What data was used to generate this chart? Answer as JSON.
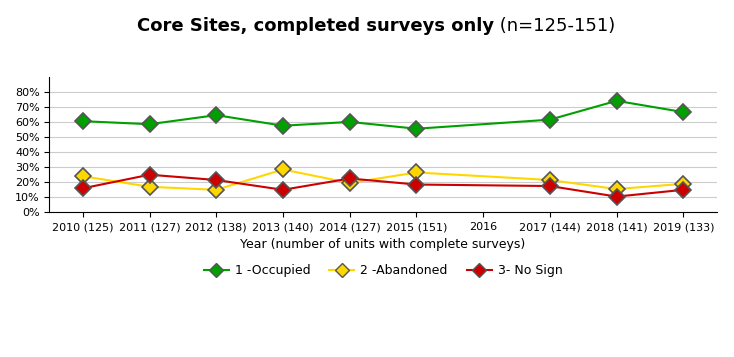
{
  "title_bold": "Core Sites, completed surveys only",
  "title_normal": " (n=125-151)",
  "xlabel": "Year (number of units with complete surveys)",
  "x_labels": [
    "2010 (125)",
    "2011 (127)",
    "2012 (138)",
    "2013 (140)",
    "2014 (127)",
    "2015 (151)",
    "2016",
    "2017 (144)",
    "2018 (141)",
    "2019 (133)"
  ],
  "x_positions": [
    0,
    1,
    2,
    3,
    4,
    5,
    6,
    7,
    8,
    9
  ],
  "occupied": {
    "positions": [
      0,
      1,
      2,
      3,
      4,
      5,
      7,
      8,
      9
    ],
    "values": [
      0.605,
      0.585,
      0.645,
      0.575,
      0.6,
      0.555,
      0.615,
      0.74,
      0.665
    ]
  },
  "abandoned": {
    "positions": [
      0,
      1,
      2,
      3,
      4,
      5,
      7,
      8,
      9
    ],
    "values": [
      0.24,
      0.17,
      0.15,
      0.285,
      0.195,
      0.265,
      0.215,
      0.155,
      0.19
    ]
  },
  "nosign": {
    "positions": [
      0,
      1,
      2,
      3,
      4,
      5,
      7,
      8,
      9
    ],
    "values": [
      0.16,
      0.25,
      0.215,
      0.15,
      0.225,
      0.185,
      0.175,
      0.105,
      0.15
    ]
  },
  "occupied_color": "#00A000",
  "abandoned_color": "#FFD700",
  "nosign_color": "#CC0000",
  "background_color": "#FFFFFF",
  "grid_color": "#CCCCCC",
  "ylim": [
    0,
    0.9
  ],
  "yticks": [
    0.0,
    0.1,
    0.2,
    0.3,
    0.4,
    0.5,
    0.6,
    0.7,
    0.8
  ],
  "legend_labels": [
    "1 -Occupied",
    "2 -Abandoned",
    "3- No Sign"
  ],
  "figsize": [
    7.34,
    3.57
  ],
  "dpi": 100
}
